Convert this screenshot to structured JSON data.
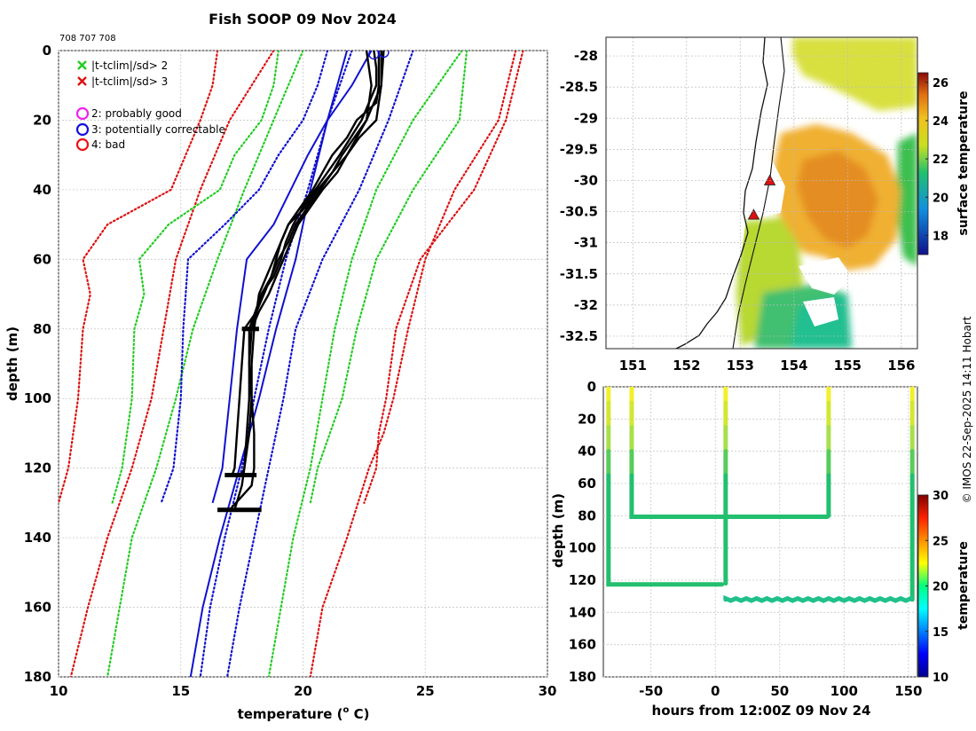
{
  "title": "Fish SOOP 09 Nov 2024",
  "ids_label": "708 707 708",
  "side_label": "© IMOS 22-Sep-2025 14:11 Hobart",
  "colors": {
    "sd2": "#22cc22",
    "sd3": "#dd1111",
    "clim": "#1010d0",
    "profile": "#000000",
    "flag2": "#ee22ee",
    "flag3": "#1111dd",
    "flag4": "#ee1111"
  },
  "chart_data": [
    {
      "id": "profile",
      "type": "line",
      "xlabel": "temperature (",
      "xlabel_sup": "o",
      "xlabel_tail": " C)",
      "ylabel": "depth (m)",
      "xlim": [
        10,
        30
      ],
      "ylim": [
        0,
        180
      ],
      "xticks": [
        "10",
        "15",
        "20",
        "25",
        "30"
      ],
      "yticks": [
        "0",
        "20",
        "40",
        "60",
        "80",
        "100",
        "120",
        "140",
        "160",
        "180"
      ],
      "legend": [
        {
          "symbol": "x",
          "color": "#22cc22",
          "label": "|t-tclim|/sd> 2"
        },
        {
          "symbol": "x",
          "color": "#dd1111",
          "label": "|t-tclim|/sd> 3"
        },
        {
          "symbol": "o",
          "color": "#ee22ee",
          "label": "2: probably good"
        },
        {
          "symbol": "o",
          "color": "#1111dd",
          "label": "3: potentially correctable"
        },
        {
          "symbol": "o",
          "color": "#ee1111",
          "label": "4: bad"
        }
      ],
      "series": [
        {
          "name": "clim-3sd-cold-a",
          "style": "dotted",
          "color": "#dd1111",
          "depth": [
            0,
            10,
            20,
            30,
            40,
            50,
            60,
            70,
            80,
            100,
            120,
            130
          ],
          "temp": [
            16.5,
            16.3,
            15.8,
            15.2,
            14.6,
            12.0,
            11.0,
            11.3,
            11.0,
            10.8,
            10.4,
            10.0
          ]
        },
        {
          "name": "clim-3sd-cold-b",
          "style": "dotted",
          "color": "#dd1111",
          "depth": [
            0,
            20,
            40,
            60,
            80,
            100,
            120,
            140,
            160,
            180
          ],
          "temp": [
            18.8,
            17.0,
            15.8,
            14.8,
            14.3,
            13.8,
            13.0,
            12.0,
            11.2,
            10.5
          ]
        },
        {
          "name": "clim-2sd-cold-a",
          "style": "dotted",
          "color": "#22cc22",
          "depth": [
            0,
            10,
            20,
            30,
            40,
            50,
            60,
            70,
            80,
            100,
            120,
            130
          ],
          "temp": [
            19.0,
            18.8,
            18.3,
            17.2,
            16.6,
            14.5,
            13.3,
            13.5,
            13.1,
            13.0,
            12.6,
            12.2
          ]
        },
        {
          "name": "clim-2sd-cold-b",
          "style": "dotted",
          "color": "#22cc22",
          "depth": [
            0,
            20,
            40,
            60,
            80,
            100,
            120,
            140,
            160,
            180
          ],
          "temp": [
            20.0,
            18.8,
            17.6,
            16.5,
            15.5,
            14.8,
            14.0,
            13.0,
            12.5,
            12.0
          ]
        },
        {
          "name": "clim-mean-a",
          "style": "dotted",
          "color": "#1010d0",
          "depth": [
            0,
            10,
            20,
            30,
            40,
            50,
            60,
            70,
            80,
            100,
            120,
            130
          ],
          "temp": [
            21.0,
            20.6,
            20.0,
            19.0,
            18.2,
            16.8,
            15.3,
            15.2,
            15.1,
            15.0,
            14.7,
            14.2
          ]
        },
        {
          "name": "clim-mean-b",
          "style": "dotted",
          "color": "#1010d0",
          "depth": [
            0,
            20,
            40,
            60,
            80,
            100,
            120,
            140,
            160,
            180
          ],
          "temp": [
            22.0,
            21.0,
            20.2,
            19.3,
            18.6,
            18.0,
            17.5,
            16.8,
            16.2,
            15.8
          ]
        },
        {
          "name": "clim-mean-c",
          "style": "dotted",
          "color": "#1010d0",
          "depth": [
            0,
            20,
            40,
            60,
            80,
            100,
            120,
            140,
            160,
            180
          ],
          "temp": [
            24.5,
            23.5,
            22.3,
            20.8,
            19.7,
            19.2,
            18.6,
            18.0,
            17.4,
            16.9
          ]
        },
        {
          "name": "clim-2sd-warm-a",
          "style": "dotted",
          "color": "#22cc22",
          "depth": [
            0,
            20,
            40,
            60,
            80,
            100,
            120,
            130
          ],
          "temp": [
            26.7,
            26.4,
            24.5,
            23.0,
            22.2,
            21.6,
            20.6,
            20.3
          ]
        },
        {
          "name": "clim-2sd-warm-b",
          "style": "dotted",
          "color": "#22cc22",
          "depth": [
            0,
            20,
            40,
            60,
            80,
            100,
            120,
            140,
            160,
            180
          ],
          "temp": [
            26.5,
            24.5,
            23.0,
            22.0,
            21.3,
            20.8,
            20.3,
            19.6,
            19.1,
            18.6
          ]
        },
        {
          "name": "clim-3sd-warm-a",
          "style": "dotted",
          "color": "#dd1111",
          "depth": [
            0,
            20,
            40,
            60,
            80,
            100,
            110,
            120,
            130
          ],
          "temp": [
            29.0,
            28.3,
            27.0,
            24.8,
            23.8,
            23.4,
            23.1,
            23.0,
            22.5
          ]
        },
        {
          "name": "clim-3sd-warm-b",
          "style": "dotted",
          "color": "#dd1111",
          "depth": [
            0,
            20,
            40,
            60,
            80,
            100,
            110,
            120,
            140,
            160,
            180
          ],
          "temp": [
            28.7,
            28.0,
            26.2,
            25.0,
            24.3,
            23.7,
            23.3,
            22.7,
            21.8,
            20.8,
            20.3
          ]
        },
        {
          "name": "clim-blue-solid-a",
          "style": "solid",
          "color": "#1010d0",
          "depth": [
            0,
            10,
            20,
            30,
            40,
            50,
            60,
            70,
            80,
            100,
            120,
            130
          ],
          "temp": [
            22.8,
            22.0,
            21.0,
            20.2,
            19.5,
            18.8,
            17.7,
            17.5,
            17.3,
            17.0,
            16.7,
            16.3
          ]
        },
        {
          "name": "clim-blue-solid-b",
          "style": "solid",
          "color": "#1010d0",
          "depth": [
            0,
            20,
            40,
            60,
            80,
            100,
            120,
            140,
            160,
            180
          ],
          "temp": [
            21.8,
            21.0,
            20.3,
            19.7,
            18.9,
            18.2,
            17.4,
            16.6,
            15.9,
            15.4
          ]
        },
        {
          "name": "profile-1",
          "style": "solid",
          "color": "#000000",
          "depth": [
            0,
            5,
            10,
            15,
            20,
            25,
            30,
            35,
            40,
            45,
            50,
            55,
            60,
            65,
            70,
            75,
            80,
            90,
            100,
            110,
            120,
            122
          ],
          "temp": [
            23.1,
            23.1,
            23.1,
            23.0,
            22.2,
            21.8,
            21.2,
            20.8,
            20.4,
            19.9,
            19.4,
            19.1,
            18.9,
            18.7,
            18.4,
            18.1,
            17.6,
            17.5,
            17.4,
            17.3,
            17.2,
            17.1
          ]
        },
        {
          "name": "profile-2",
          "style": "solid",
          "color": "#000000",
          "depth": [
            0,
            10,
            15,
            20,
            30,
            35,
            40,
            45,
            50,
            55,
            60,
            65,
            70,
            75,
            80,
            90,
            100,
            110,
            120,
            122
          ],
          "temp": [
            23.2,
            23.2,
            22.9,
            22.6,
            21.6,
            21.2,
            20.6,
            20.1,
            19.4,
            19.1,
            18.8,
            18.5,
            18.2,
            18.1,
            18.0,
            17.9,
            17.9,
            17.8,
            17.6,
            17.5
          ]
        },
        {
          "name": "profile-3",
          "style": "solid",
          "color": "#000000",
          "depth": [
            0,
            5,
            10,
            20,
            30,
            35,
            40,
            45,
            50,
            55,
            60,
            65,
            70,
            80,
            90,
            100,
            110,
            120,
            125,
            132
          ],
          "temp": [
            22.9,
            23.0,
            23.0,
            22.4,
            21.5,
            21.0,
            20.5,
            20.0,
            19.6,
            19.3,
            19.1,
            18.8,
            18.3,
            17.8,
            17.8,
            17.9,
            18.0,
            18.0,
            17.9,
            17.0
          ]
        },
        {
          "name": "profile-4",
          "style": "solid",
          "color": "#000000",
          "depth": [
            0,
            10,
            15,
            20,
            25,
            30,
            35,
            40,
            45,
            50,
            55,
            60,
            65,
            70,
            75,
            80
          ],
          "temp": [
            23.3,
            23.2,
            23.1,
            23.0,
            22.3,
            21.8,
            21.2,
            20.7,
            20.2,
            19.7,
            19.4,
            19.0,
            18.7,
            18.3,
            18.1,
            17.9
          ]
        },
        {
          "name": "profile-5",
          "style": "solid",
          "color": "#000000",
          "depth": [
            0,
            10,
            20,
            30,
            35,
            40,
            45,
            50,
            55,
            60,
            65,
            70,
            75,
            80,
            90,
            100,
            110,
            120,
            125,
            132
          ],
          "temp": [
            22.6,
            22.8,
            22.6,
            21.8,
            21.4,
            20.8,
            20.3,
            19.8,
            19.5,
            19.2,
            18.9,
            18.6,
            18.2,
            17.9,
            17.8,
            17.8,
            17.7,
            17.6,
            17.5,
            17.2
          ]
        }
      ],
      "bottom_hits": [
        {
          "depth": 80,
          "from": 17.5,
          "to": 18.2
        },
        {
          "depth": 122,
          "from": 16.8,
          "to": 18.1
        },
        {
          "depth": 132,
          "from": 16.5,
          "to": 18.3
        }
      ],
      "flag_markers": [
        {
          "depth": 1,
          "temp": 22.9
        },
        {
          "depth": 0.5,
          "temp": 23.3
        }
      ]
    },
    {
      "id": "map",
      "type": "heatmap",
      "title": "",
      "xlabel": "",
      "ylabel": "",
      "xlim": [
        150.5,
        156.3
      ],
      "ylim": [
        -32.7,
        -27.7
      ],
      "xticks": [
        "151",
        "152",
        "153",
        "154",
        "155",
        "156"
      ],
      "yticks": [
        "-28",
        "-28.5",
        "-29",
        "-29.5",
        "-30",
        "-30.5",
        "-31",
        "-31.5",
        "-32",
        "-32.5"
      ],
      "colorbar_label": "surface temperature",
      "colorbar_range": [
        17,
        26.5
      ],
      "colorbar_ticks": [
        "26",
        "24",
        "22",
        "20",
        "18"
      ],
      "drop_sites": [
        {
          "lon": 153.55,
          "lat": -30.0
        },
        {
          "lon": 153.25,
          "lat": -30.55
        }
      ]
    },
    {
      "id": "timeseries",
      "type": "scatter",
      "xlabel": "hours from 12:00Z 09 Nov 24",
      "ylabel": "depth (m)",
      "xlim": [
        -87,
        157
      ],
      "ylim": [
        0,
        180
      ],
      "xticks": [
        "-50",
        "0",
        "50",
        "100",
        "150"
      ],
      "yticks": [
        "0",
        "20",
        "40",
        "60",
        "80",
        "100",
        "120",
        "140",
        "160",
        "180"
      ],
      "colorbar_label": "temperature",
      "colorbar_range": [
        10,
        30
      ],
      "colorbar_ticks": [
        "30",
        "25",
        "20",
        "15",
        "10"
      ],
      "drops": [
        {
          "hours": -83,
          "max_depth": 122
        },
        {
          "hours": -65,
          "max_depth": 80
        },
        {
          "hours": 8,
          "max_depth": 122
        },
        {
          "hours": 88,
          "max_depth": 80
        },
        {
          "hours": 153,
          "max_depth": 132
        }
      ],
      "bottom_tracks": [
        {
          "from": -83,
          "to": 8,
          "depth": 122
        },
        {
          "from": -65,
          "to": 88,
          "depth": 80
        },
        {
          "from": 8,
          "to": 153,
          "depth": 132
        }
      ]
    }
  ]
}
